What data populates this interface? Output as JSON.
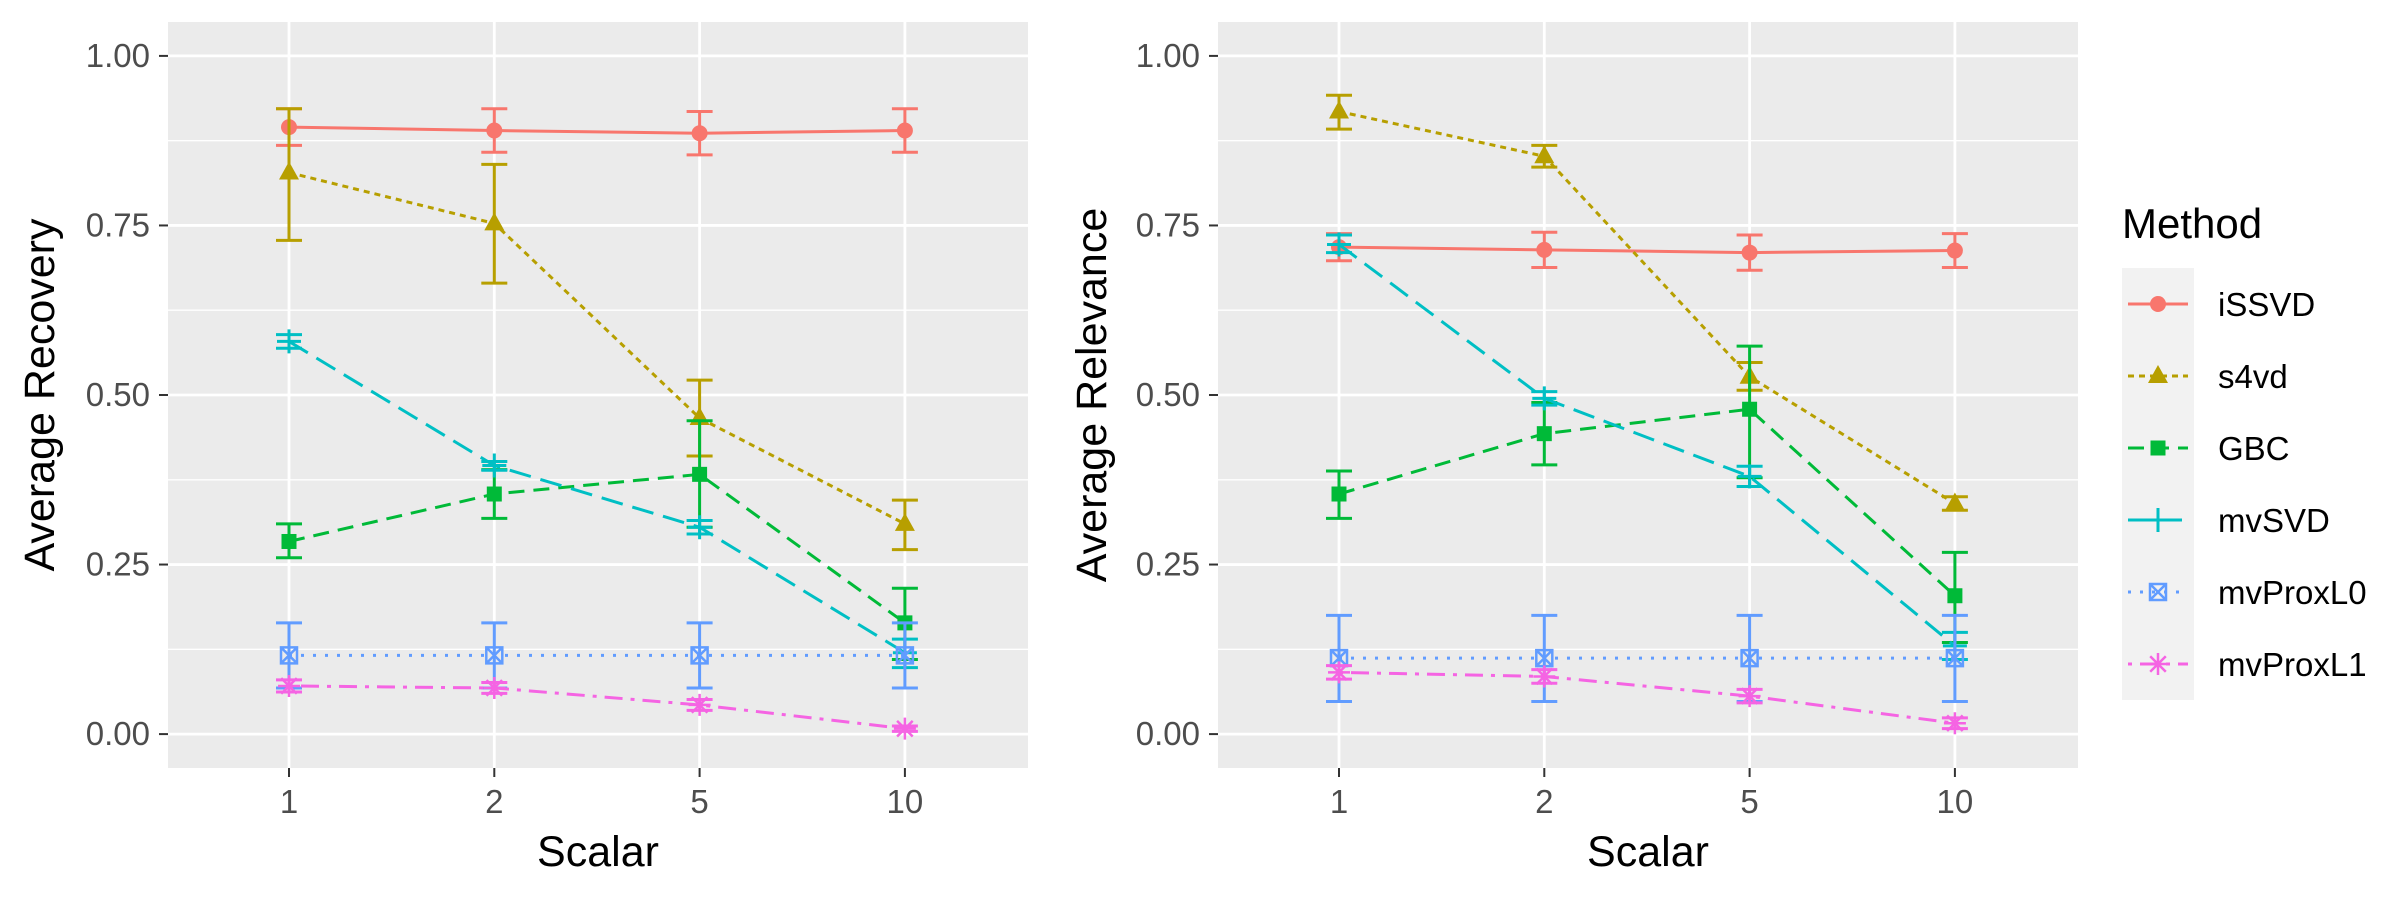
{
  "legend": {
    "title": "Method",
    "placement": "right"
  },
  "chart_data": [
    {
      "type": "line",
      "xlabel": "Scalar",
      "ylabel": "Average Recovery",
      "categories": [
        "1",
        "2",
        "5",
        "10"
      ],
      "ylim": [
        -0.05,
        1.05
      ],
      "yticks": [
        "0.00",
        "0.25",
        "0.50",
        "0.75",
        "1.00"
      ],
      "grid": true,
      "series": [
        {
          "name": "iSSVD",
          "values": [
            0.895,
            0.89,
            0.886,
            0.89
          ],
          "lower": [
            0.868,
            0.858,
            0.854,
            0.858
          ],
          "upper": [
            0.922,
            0.922,
            0.918,
            0.922
          ]
        },
        {
          "name": "s4vd",
          "values": [
            0.828,
            0.753,
            0.466,
            0.31
          ],
          "lower": [
            0.728,
            0.665,
            0.41,
            0.272
          ],
          "upper": [
            0.922,
            0.84,
            0.522,
            0.345
          ]
        },
        {
          "name": "GBC",
          "values": [
            0.284,
            0.354,
            0.383,
            0.164
          ],
          "lower": [
            0.26,
            0.318,
            0.305,
            0.11
          ],
          "upper": [
            0.31,
            0.39,
            0.462,
            0.215
          ]
        },
        {
          "name": "mvSVD",
          "values": [
            0.579,
            0.396,
            0.305,
            0.12
          ],
          "lower": [
            0.569,
            0.389,
            0.295,
            0.098
          ],
          "upper": [
            0.589,
            0.402,
            0.315,
            0.14
          ]
        },
        {
          "name": "mvProxL0",
          "values": [
            0.116,
            0.116,
            0.116,
            0.116
          ],
          "lower": [
            0.068,
            0.068,
            0.068,
            0.068
          ],
          "upper": [
            0.164,
            0.164,
            0.164,
            0.164
          ]
        },
        {
          "name": "mvProxL1",
          "values": [
            0.071,
            0.068,
            0.043,
            0.008
          ],
          "lower": [
            0.062,
            0.06,
            0.035,
            0.004
          ],
          "upper": [
            0.08,
            0.076,
            0.051,
            0.012
          ]
        }
      ]
    },
    {
      "type": "line",
      "xlabel": "Scalar",
      "ylabel": "Average Relevance",
      "categories": [
        "1",
        "2",
        "5",
        "10"
      ],
      "ylim": [
        -0.05,
        1.05
      ],
      "yticks": [
        "0.00",
        "0.25",
        "0.50",
        "0.75",
        "1.00"
      ],
      "grid": true,
      "series": [
        {
          "name": "iSSVD",
          "values": [
            0.718,
            0.714,
            0.71,
            0.713
          ],
          "lower": [
            0.698,
            0.688,
            0.684,
            0.688
          ],
          "upper": [
            0.738,
            0.74,
            0.736,
            0.738
          ]
        },
        {
          "name": "s4vd",
          "values": [
            0.918,
            0.852,
            0.527,
            0.34
          ],
          "lower": [
            0.892,
            0.836,
            0.507,
            0.33
          ],
          "upper": [
            0.942,
            0.868,
            0.548,
            0.35
          ]
        },
        {
          "name": "GBC",
          "values": [
            0.354,
            0.443,
            0.479,
            0.204
          ],
          "lower": [
            0.318,
            0.397,
            0.378,
            0.135
          ],
          "upper": [
            0.388,
            0.489,
            0.572,
            0.268
          ]
        },
        {
          "name": "mvSVD",
          "values": [
            0.722,
            0.495,
            0.38,
            0.13
          ],
          "lower": [
            0.71,
            0.485,
            0.365,
            0.11
          ],
          "upper": [
            0.736,
            0.505,
            0.395,
            0.15
          ]
        },
        {
          "name": "mvProxL0",
          "values": [
            0.112,
            0.112,
            0.112,
            0.112
          ],
          "lower": [
            0.048,
            0.048,
            0.048,
            0.048
          ],
          "upper": [
            0.175,
            0.175,
            0.175,
            0.175
          ]
        },
        {
          "name": "mvProxL1",
          "values": [
            0.091,
            0.085,
            0.056,
            0.016
          ],
          "lower": [
            0.081,
            0.075,
            0.046,
            0.008
          ],
          "upper": [
            0.101,
            0.095,
            0.066,
            0.024
          ]
        }
      ]
    }
  ],
  "styles": {
    "panel_background": "#ebebeb",
    "grid_color": "#ffffff",
    "series_colors": {
      "iSSVD": "#f8766d",
      "s4vd": "#b79f00",
      "GBC": "#00ba38",
      "mvSVD": "#00bfc4",
      "mvProxL0": "#619cff",
      "mvProxL1": "#f564e3"
    },
    "series_dash": {
      "iSSVD": "solid",
      "s4vd": "dotted-short",
      "GBC": "dashed",
      "mvSVD": "long-dashed",
      "mvProxL0": "dotted",
      "mvProxL1": "dot-dash"
    },
    "series_marker": {
      "iSSVD": "circle",
      "s4vd": "triangle",
      "GBC": "square",
      "mvSVD": "plus",
      "mvProxL0": "square-cross",
      "mvProxL1": "asterisk"
    }
  }
}
